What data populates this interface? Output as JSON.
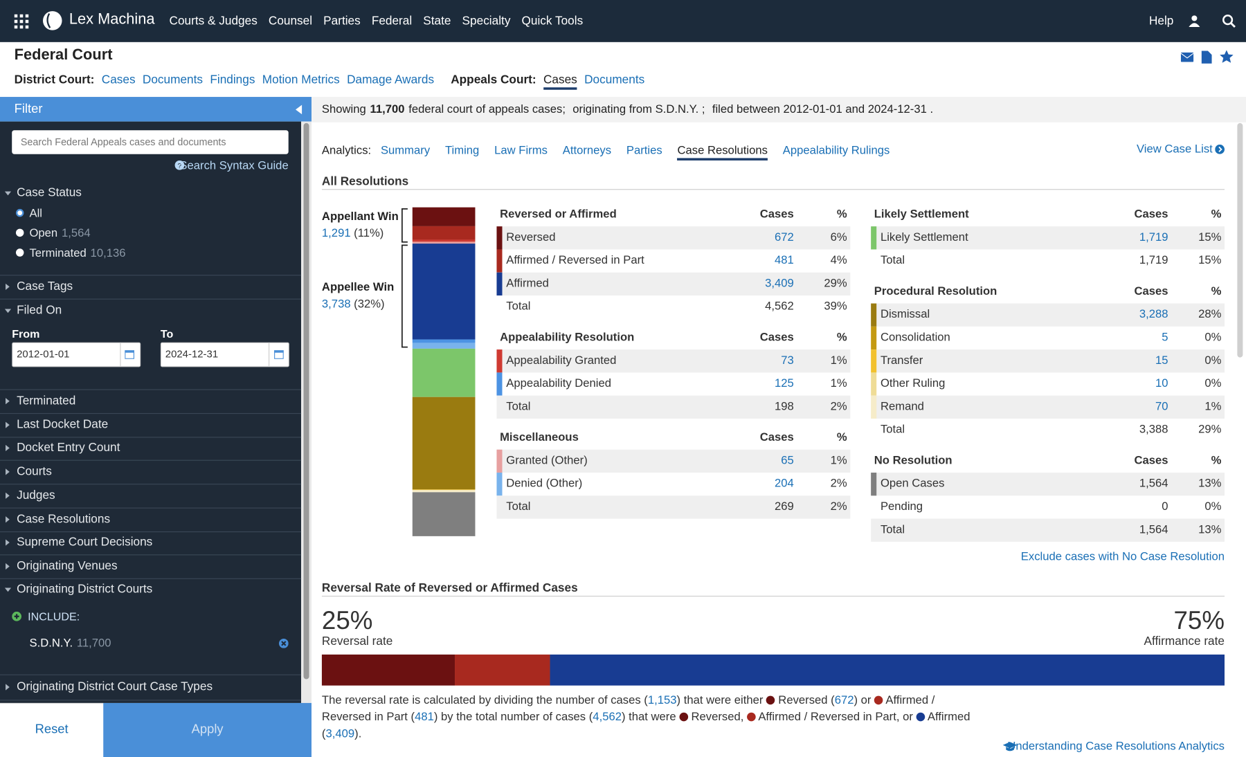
{
  "topnav": {
    "brand": "Lex Machina",
    "menu": [
      "Courts & Judges",
      "Counsel",
      "Parties",
      "Federal",
      "State",
      "Specialty",
      "Quick Tools"
    ],
    "help": "Help"
  },
  "header": {
    "title": "Federal Court",
    "district_label": "District Court:",
    "district_links": [
      "Cases",
      "Documents",
      "Findings",
      "Motion Metrics",
      "Damage Awards"
    ],
    "appeals_label": "Appeals Court:",
    "appeals_links": [
      "Cases",
      "Documents"
    ],
    "appeals_active": 0
  },
  "filter": {
    "title": "Filter",
    "search_placeholder": "Search Federal Appeals cases and documents",
    "syntax_guide": "Search Syntax Guide",
    "case_status": {
      "label": "Case Status",
      "selected": 0,
      "options": [
        {
          "label": "All"
        },
        {
          "label": "Open",
          "count": "1,564"
        },
        {
          "label": "Terminated",
          "count": "10,136"
        }
      ]
    },
    "case_tags": "Case Tags",
    "filed_on": {
      "label": "Filed On",
      "from_label": "From",
      "from": "2012-01-01",
      "to_label": "To",
      "to": "2024-12-31"
    },
    "sections": [
      "Terminated",
      "Last Docket Date",
      "Docket Entry Count",
      "Courts",
      "Judges",
      "Case Resolutions",
      "Supreme Court Decisions",
      "Originating Venues"
    ],
    "district_courts": {
      "label": "Originating District Courts",
      "include_label": "INCLUDE:",
      "court": "S.D.N.Y.",
      "count": "11,700"
    },
    "case_types": "Originating District Court Case Types",
    "reset": "Reset",
    "apply": "Apply"
  },
  "summary": {
    "prefix": "Showing",
    "count": "11,700",
    "text": "federal court of appeals cases;",
    "origin": "originating from S.D.N.Y. ;",
    "filed": "filed between 2012-01-01 and 2024-12-31 ."
  },
  "analytics": {
    "label": "Analytics:",
    "tabs": [
      "Summary",
      "Timing",
      "Law Firms",
      "Attorneys",
      "Parties",
      "Case Resolutions",
      "Appealability Rulings"
    ],
    "active": 5,
    "view_case_list": "View Case List"
  },
  "all_resolutions": {
    "title": "All Resolutions",
    "appellant_win": {
      "label": "Appellant Win",
      "count": "1,291",
      "pct": "(11%)"
    },
    "appellee_win": {
      "label": "Appellee Win",
      "count": "3,738",
      "pct": "(32%)"
    },
    "groups": [
      {
        "title": "Reversed or Affirmed",
        "cases_header": "Cases",
        "pct_header": "%",
        "rows": [
          {
            "name": "Reversed",
            "cases": "672",
            "pct": "6%",
            "color": "#6b1111",
            "link": true
          },
          {
            "name": "Affirmed / Reversed in Part",
            "cases": "481",
            "pct": "4%",
            "color": "#a8291f",
            "link": true
          },
          {
            "name": "Affirmed",
            "cases": "3,409",
            "pct": "29%",
            "color": "#183c92",
            "link": true
          }
        ],
        "total": {
          "name": "Total",
          "cases": "4,562",
          "pct": "39%"
        }
      },
      {
        "title": "Appealability Resolution",
        "cases_header": "Cases",
        "pct_header": "%",
        "rows": [
          {
            "name": "Appealability Granted",
            "cases": "73",
            "pct": "1%",
            "color": "#cf3a32",
            "link": true
          },
          {
            "name": "Appealability Denied",
            "cases": "125",
            "pct": "1%",
            "color": "#4c93e3",
            "link": true
          }
        ],
        "total": {
          "name": "Total",
          "cases": "198",
          "pct": "2%"
        }
      },
      {
        "title": "Miscellaneous",
        "cases_header": "Cases",
        "pct_header": "%",
        "rows": [
          {
            "name": "Granted (Other)",
            "cases": "65",
            "pct": "1%",
            "color": "#e7a0a0",
            "link": true
          },
          {
            "name": "Denied (Other)",
            "cases": "204",
            "pct": "2%",
            "color": "#79b3ec",
            "link": true
          }
        ],
        "total": {
          "name": "Total",
          "cases": "269",
          "pct": "2%"
        }
      },
      {
        "title": "Likely Settlement",
        "cases_header": "Cases",
        "pct_header": "%",
        "rows": [
          {
            "name": "Likely Settlement",
            "cases": "1,719",
            "pct": "15%",
            "color": "#7cc66a",
            "link": true
          }
        ],
        "total": {
          "name": "Total",
          "cases": "1,719",
          "pct": "15%"
        }
      },
      {
        "title": "Procedural Resolution",
        "cases_header": "Cases",
        "pct_header": "%",
        "rows": [
          {
            "name": "Dismissal",
            "cases": "3,288",
            "pct": "28%",
            "color": "#9a7b10",
            "link": true
          },
          {
            "name": "Consolidation",
            "cases": "5",
            "pct": "0%",
            "color": "#c49a12",
            "link": true
          },
          {
            "name": "Transfer",
            "cases": "15",
            "pct": "0%",
            "color": "#f2c12e",
            "link": true
          },
          {
            "name": "Other Ruling",
            "cases": "10",
            "pct": "0%",
            "color": "#efdc96",
            "link": true
          },
          {
            "name": "Remand",
            "cases": "70",
            "pct": "1%",
            "color": "#f6ecc9",
            "link": true
          }
        ],
        "total": {
          "name": "Total",
          "cases": "3,388",
          "pct": "29%"
        }
      },
      {
        "title": "No Resolution",
        "cases_header": "Cases",
        "pct_header": "%",
        "rows": [
          {
            "name": "Open Cases",
            "cases": "1,564",
            "pct": "13%",
            "color": "#7f7f7f"
          },
          {
            "name": "Pending",
            "cases": "0",
            "pct": "0%"
          }
        ],
        "total": {
          "name": "Total",
          "cases": "1,564",
          "pct": "13%"
        }
      }
    ],
    "exclude_link": "Exclude cases with No Case Resolution"
  },
  "reversal": {
    "title": "Reversal Rate of Reversed or Affirmed Cases",
    "reversal_pct": "25%",
    "reversal_label": "Reversal rate",
    "affirmance_pct": "75%",
    "affirmance_label": "Affirmance rate",
    "note": [
      {
        "text": "The reversal rate is calculated by dividing the number of cases ("
      },
      {
        "text": "1,153",
        "link": true
      },
      {
        "text": ") that were either "
      },
      {
        "dot": "#6b1111"
      },
      {
        "text": " Reversed ("
      },
      {
        "text": "672",
        "link": true
      },
      {
        "text": ") or "
      },
      {
        "dot": "#a8291f"
      },
      {
        "text": " Affirmed / Reversed in Part ("
      },
      {
        "text": "481",
        "link": true
      },
      {
        "text": ") by the total number of cases ("
      },
      {
        "text": "4,562",
        "link": true
      },
      {
        "text": ") that were "
      },
      {
        "dot": "#6b1111"
      },
      {
        "text": " Reversed, "
      },
      {
        "dot": "#a8291f"
      },
      {
        "text": " Affirmed / Reversed in Part, or "
      },
      {
        "dot": "#183c92"
      },
      {
        "text": " Affirmed ("
      },
      {
        "text": "3,409",
        "link": true
      },
      {
        "text": ")."
      }
    ],
    "understanding": "Understanding Case Resolutions Analytics"
  }
}
